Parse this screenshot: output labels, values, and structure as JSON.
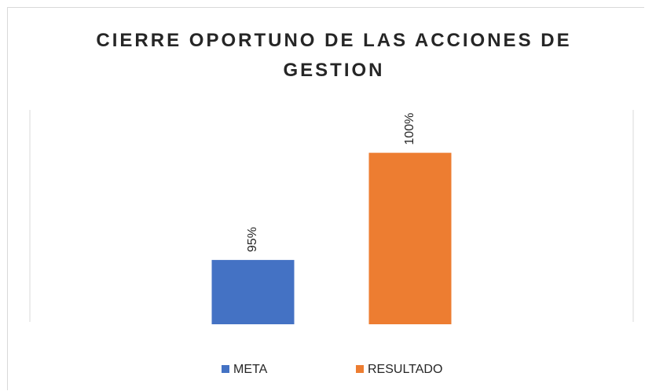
{
  "chart_data": {
    "type": "bar",
    "title": "CIERRE OPORTUNO DE LAS ACCIONES DE GESTION",
    "categories": [
      null
    ],
    "series": [
      {
        "name": "META",
        "color": "#4472c4",
        "values": [
          95
        ],
        "value_labels": [
          "95%"
        ]
      },
      {
        "name": "RESULTADO",
        "color": "#ed7d31",
        "values": [
          100
        ],
        "value_labels": [
          "100%"
        ]
      }
    ],
    "ylim": [
      92,
      102
    ],
    "legend": "bottom"
  }
}
